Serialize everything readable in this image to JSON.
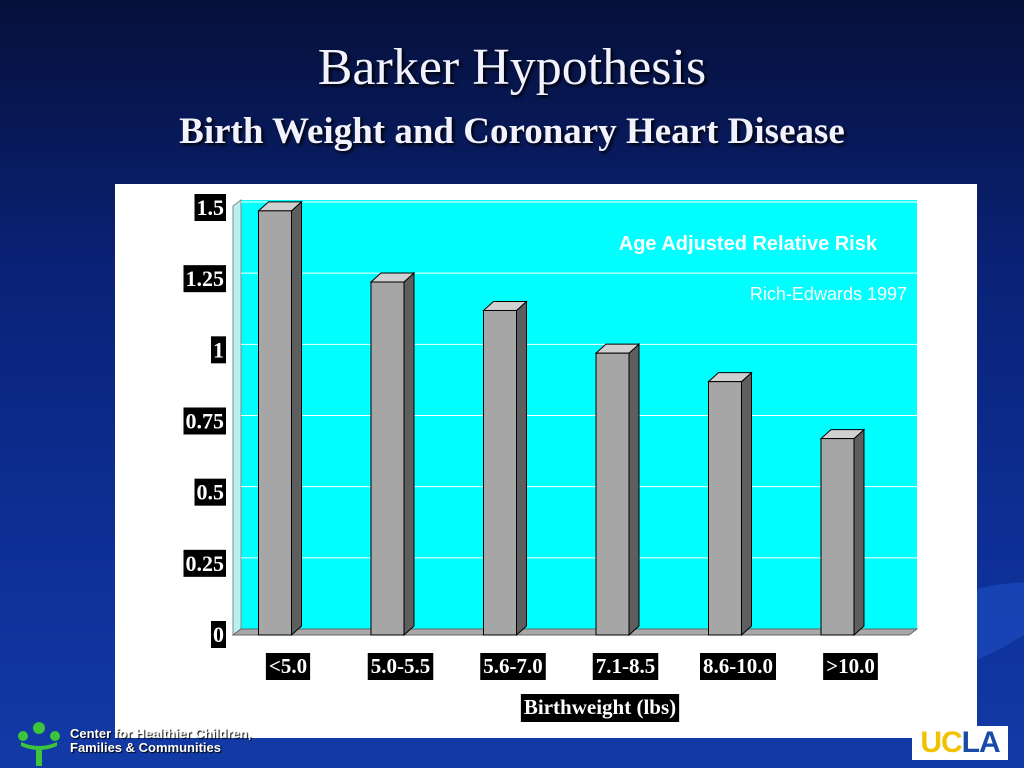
{
  "slide": {
    "title": "Barker Hypothesis",
    "subtitle": "Birth Weight and Coronary Heart Disease"
  },
  "footer": {
    "org_line1": "Center for Healthier Children,",
    "org_line2": "Families & Communities",
    "logo_text_uc": "UC",
    "logo_text_la": "LA",
    "logo_icon": "figure-logo-icon"
  },
  "chart_data": {
    "type": "bar",
    "title": "Age Adjusted Relative Risk",
    "subtitle": "Rich-Edwards 1997",
    "xlabel": "Birthweight (lbs)",
    "ylabel": "",
    "categories": [
      "<5.0",
      "5.0-5.5",
      "5.6-7.0",
      "7.1-8.5",
      "8.6-10.0",
      ">10.0"
    ],
    "values": [
      1.49,
      1.24,
      1.14,
      0.99,
      0.89,
      0.69
    ],
    "ylim": [
      0,
      1.5
    ],
    "yticks": [
      "0",
      "0.25",
      "0.5",
      "0.75",
      "1",
      "1.25",
      "1.5"
    ],
    "grid": true,
    "colors": {
      "plot_background": "#00ffff",
      "bar_front": "#a6a6a6",
      "bar_side": "#5e5e5e",
      "bar_top": "#d0d0d0",
      "title_text": "#ffffff"
    }
  }
}
